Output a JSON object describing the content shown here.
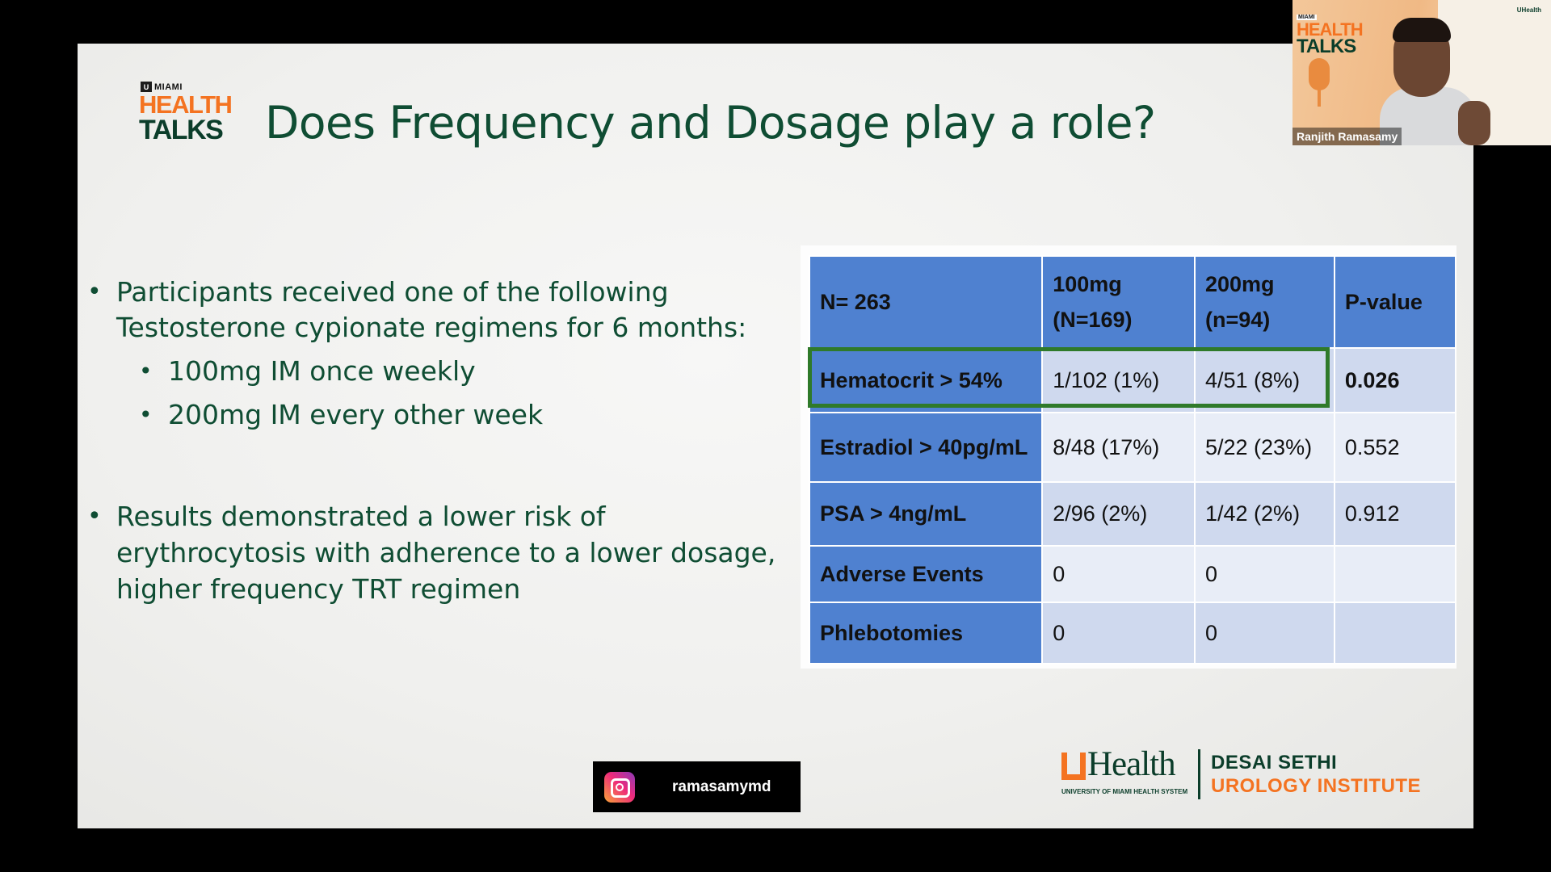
{
  "slide": {
    "logo": {
      "miami": "MIAMI",
      "health": "HEALTH",
      "talks": "TALKS"
    },
    "title": "Does Frequency and Dosage play a role?",
    "bullets": {
      "b1_line1": "Participants received one of the following",
      "b1_line2": "Testosterone cypionate regimens for 6 months:",
      "sub1": "100mg IM once weekly",
      "sub2": "200mg IM every other week",
      "b2_line1": "Results demonstrated a lower risk of",
      "b2_line2": "erythrocytosis with adherence to a lower dosage,",
      "b2_line3": "higher frequency TRT regimen"
    },
    "table": {
      "header": {
        "c0": "N= 263",
        "c1_l1": "100mg",
        "c1_l2": "(N=169)",
        "c2_l1": "200mg",
        "c2_l2": "(n=94)",
        "c3": "P-value"
      },
      "rows": [
        {
          "label": "Hematocrit > 54%",
          "v1": "1/102 (1%)",
          "v2": "4/51 (8%)",
          "p": "0.026"
        },
        {
          "label": "Estradiol > 40pg/mL",
          "v1": "8/48 (17%)",
          "v2": "5/22 (23%)",
          "p": "0.552"
        },
        {
          "label": "PSA > 4ng/mL",
          "v1": "2/96 (2%)",
          "v2": "1/42 (2%)",
          "p": "0.912"
        },
        {
          "label": "Adverse Events",
          "v1": "0",
          "v2": "0",
          "p": ""
        },
        {
          "label": "Phlebotomies",
          "v1": "0",
          "v2": "0",
          "p": ""
        }
      ]
    },
    "instagram": {
      "handle": "ramasamymd"
    },
    "branding": {
      "uhealth": "Health",
      "uhealth_sub": "UNIVERSITY OF MIAMI HEALTH SYSTEM",
      "institute_line1": "DESAI SETHI",
      "institute_line2": "UROLOGY INSTITUTE"
    }
  },
  "webcam": {
    "logo_miami": "MIAMI",
    "logo_health": "HEALTH",
    "logo_talks": "TALKS",
    "brand": "UHealth",
    "speaker_name": "Ranjith Ramasamy"
  },
  "colors": {
    "title_green": "#0f4d33",
    "orange": "#f47321",
    "table_blue": "#4f81d0",
    "highlight_green": "#2f7a2a"
  }
}
